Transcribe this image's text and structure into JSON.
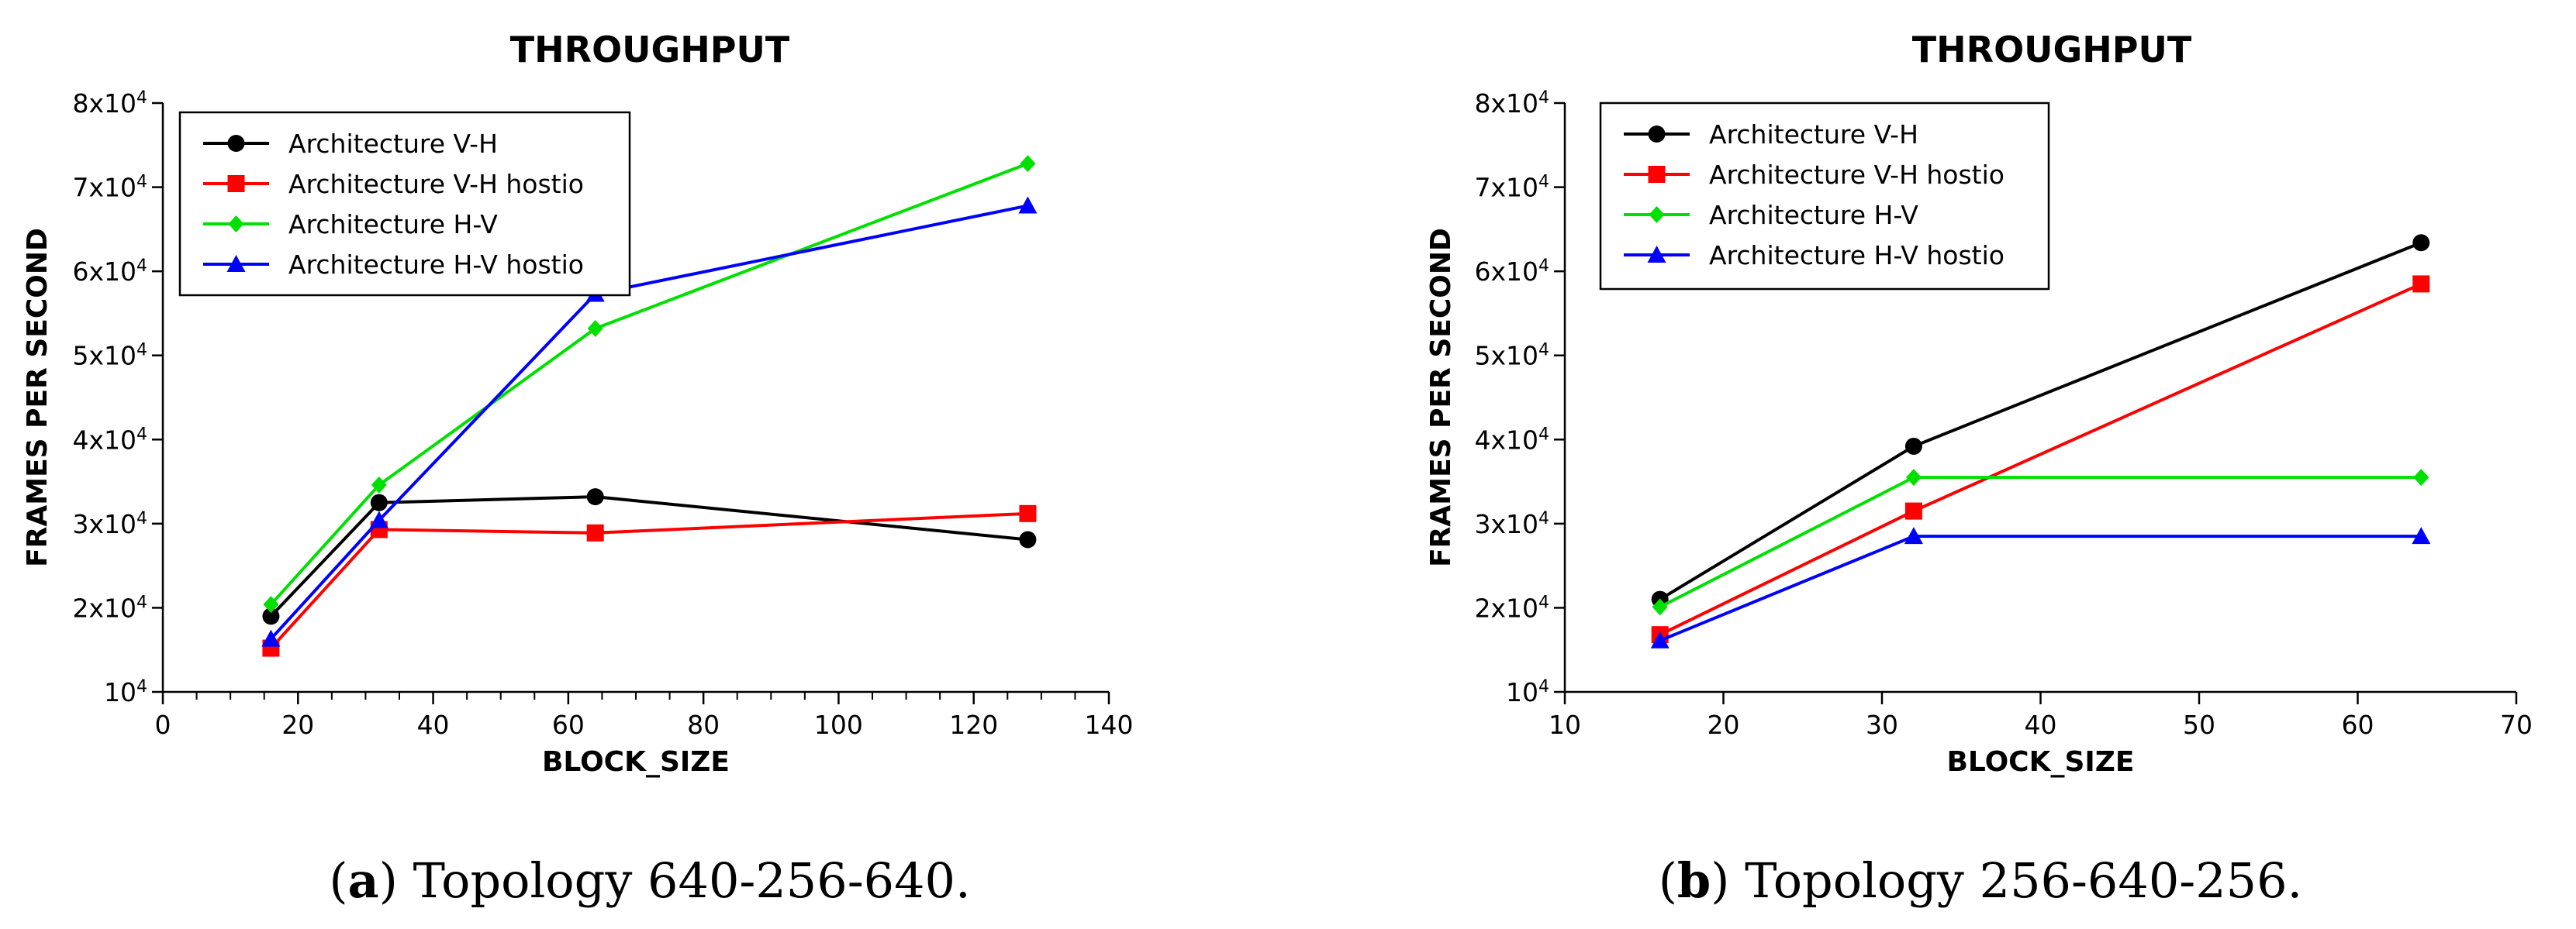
{
  "chart_data": [
    {
      "type": "line",
      "title": "THROUGHPUT",
      "xlabel": "BLOCK_SIZE",
      "ylabel": "FRAMES PER SECOND",
      "xlim": [
        0,
        140
      ],
      "ylim": [
        10000,
        80000
      ],
      "xticks": [
        0,
        20,
        40,
        60,
        80,
        100,
        120,
        140
      ],
      "yticks": [
        {
          "value": 10000,
          "base": "10",
          "exp": "4"
        },
        {
          "value": 20000,
          "base": "2x10",
          "exp": "4"
        },
        {
          "value": 30000,
          "base": "3x10",
          "exp": "4"
        },
        {
          "value": 40000,
          "base": "4x10",
          "exp": "4"
        },
        {
          "value": 50000,
          "base": "5x10",
          "exp": "4"
        },
        {
          "value": 60000,
          "base": "6x10",
          "exp": "4"
        },
        {
          "value": 70000,
          "base": "7x10",
          "exp": "4"
        },
        {
          "value": 80000,
          "base": "8x10",
          "exp": "4"
        }
      ],
      "legend_position": "top-left",
      "series": [
        {
          "name": "Architecture V-H",
          "color": "#000000",
          "marker": "circle",
          "x": [
            16,
            32,
            64,
            128
          ],
          "y": [
            19000,
            32500,
            33200,
            28100
          ]
        },
        {
          "name": "Architecture V-H hostio",
          "color": "#ff0000",
          "marker": "square",
          "x": [
            16,
            32,
            64,
            128
          ],
          "y": [
            15200,
            29300,
            28900,
            31200
          ]
        },
        {
          "name": "Architecture H-V",
          "color": "#00e000",
          "marker": "diamond",
          "x": [
            16,
            32,
            64,
            128
          ],
          "y": [
            20400,
            34600,
            53200,
            72800
          ]
        },
        {
          "name": "Architecture H-V hostio",
          "color": "#0000ff",
          "marker": "triangle",
          "x": [
            16,
            32,
            64,
            128
          ],
          "y": [
            16300,
            30400,
            57300,
            67800
          ]
        }
      ],
      "caption_letter": "a",
      "caption_text": "Topology 640-256-640."
    },
    {
      "type": "line",
      "title": "THROUGHPUT",
      "xlabel": "BLOCK_SIZE",
      "ylabel": "FRAMES PER SECOND",
      "xlim": [
        10,
        70
      ],
      "ylim": [
        10000,
        80000
      ],
      "xticks": [
        10,
        20,
        30,
        40,
        50,
        60,
        70
      ],
      "yticks": [
        {
          "value": 10000,
          "base": "10",
          "exp": "4"
        },
        {
          "value": 20000,
          "base": "2x10",
          "exp": "4"
        },
        {
          "value": 30000,
          "base": "3x10",
          "exp": "4"
        },
        {
          "value": 40000,
          "base": "4x10",
          "exp": "4"
        },
        {
          "value": 50000,
          "base": "5x10",
          "exp": "4"
        },
        {
          "value": 60000,
          "base": "6x10",
          "exp": "4"
        },
        {
          "value": 70000,
          "base": "7x10",
          "exp": "4"
        },
        {
          "value": 80000,
          "base": "8x10",
          "exp": "4"
        }
      ],
      "legend_position": "top-left",
      "series": [
        {
          "name": "Architecture V-H",
          "color": "#000000",
          "marker": "circle",
          "x": [
            16,
            32,
            64
          ],
          "y": [
            21000,
            39200,
            63400
          ]
        },
        {
          "name": "Architecture V-H hostio",
          "color": "#ff0000",
          "marker": "square",
          "x": [
            16,
            32,
            64
          ],
          "y": [
            16800,
            31500,
            58500
          ]
        },
        {
          "name": "Architecture H-V",
          "color": "#00e000",
          "marker": "diamond",
          "x": [
            16,
            32,
            64
          ],
          "y": [
            20100,
            35500,
            35500
          ]
        },
        {
          "name": "Architecture H-V hostio",
          "color": "#0000ff",
          "marker": "triangle",
          "x": [
            16,
            32,
            64
          ],
          "y": [
            16100,
            28500,
            28500
          ]
        }
      ],
      "caption_letter": "b",
      "caption_text": "Topology 256-640-256."
    }
  ]
}
